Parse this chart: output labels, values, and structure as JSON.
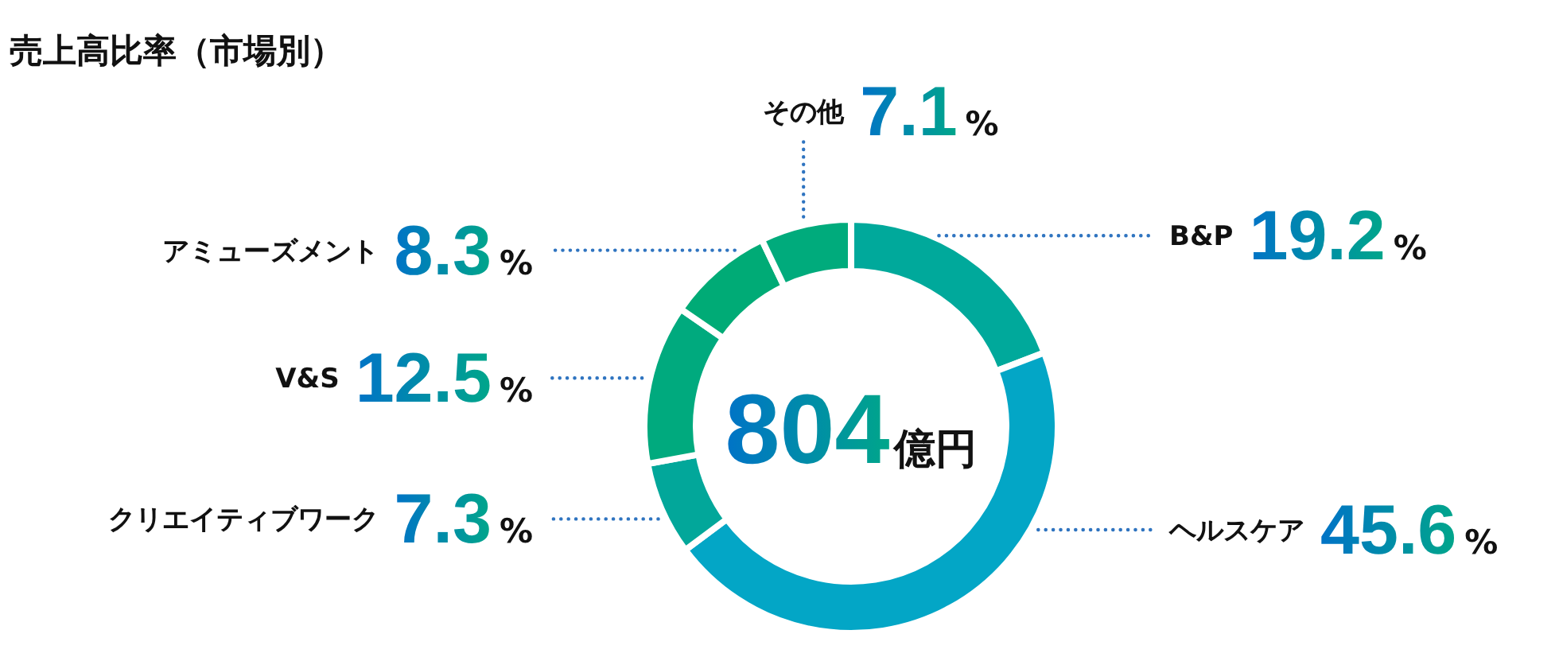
{
  "chart_data": {
    "type": "donut",
    "title": "売上高比率（市場別）",
    "categories": [
      "B&P",
      "ヘルスケア",
      "クリエイティブワーク",
      "V&S",
      "アミューズメント",
      "その他"
    ],
    "values": [
      19.2,
      45.6,
      7.3,
      12.5,
      8.3,
      7.1
    ],
    "colors": [
      "#00a99b",
      "#03a6c6",
      "#02a79a",
      "#00aa7e",
      "#00ab76",
      "#00ab7c"
    ],
    "value_labels": [
      "19.2%",
      "45.6%",
      "7.3%",
      "12.5%",
      "8.3%",
      "7.1%"
    ],
    "annotations": [
      "804億円"
    ]
  }
}
